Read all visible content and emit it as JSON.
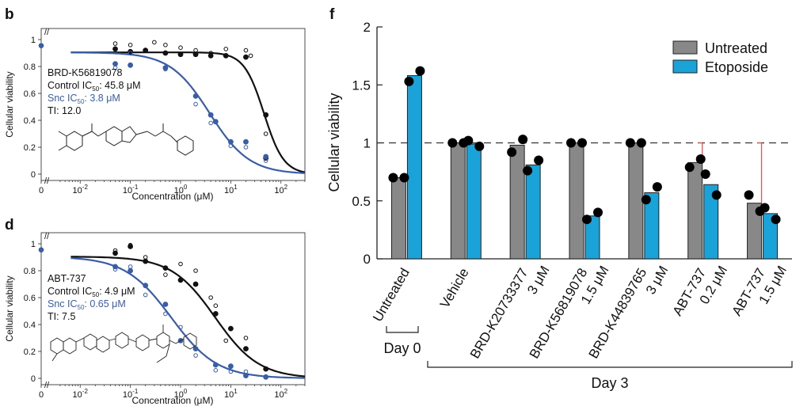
{
  "chart_data": [
    {
      "panel": "b",
      "type": "scatter",
      "xlabel": "Concentration (μM)",
      "ylabel": "Cellular viability",
      "xscale": "log",
      "xlim": [
        0.004,
        300
      ],
      "ylim": [
        -0.05,
        1.05
      ],
      "x_ticks": [
        {
          "v": 0.01,
          "base": "10",
          "exp": "-2"
        },
        {
          "v": 0.1,
          "base": "10",
          "exp": "-1"
        },
        {
          "v": 1,
          "base": "10",
          "exp": "0"
        },
        {
          "v": 10,
          "base": "10",
          "exp": "1"
        },
        {
          "v": 100,
          "base": "10",
          "exp": "2"
        }
      ],
      "x_zero_label": "0",
      "y_ticks": [
        "0",
        "0.2",
        "0.4",
        "0.6",
        "0.8",
        "1"
      ],
      "annotations": {
        "compound": "BRD-K56819078",
        "control_pre": "Control IC",
        "control_sub": "50",
        "control_post": ": 45.8 μM",
        "snc_pre": "Snc IC",
        "snc_sub": "50",
        "snc_post": ": 3.8 μM",
        "ti": "TI: 12.0"
      },
      "series": [
        {
          "name": "Control",
          "color": "#111111",
          "ic50": 45.8,
          "top": 0.905,
          "hill": 2.2,
          "points_filled": [
            [
              0.05,
              0.93
            ],
            [
              0.1,
              0.91
            ],
            [
              0.2,
              0.92
            ],
            [
              0.5,
              0.9
            ],
            [
              1,
              0.89
            ],
            [
              2,
              0.89
            ],
            [
              4,
              0.88
            ],
            [
              8,
              0.88
            ],
            [
              20,
              0.87
            ],
            [
              50,
              0.44
            ],
            [
              50,
              0.12
            ]
          ],
          "points_open": [
            [
              0.05,
              0.97
            ],
            [
              0.1,
              0.96
            ],
            [
              0.2,
              0.92
            ],
            [
              0.3,
              0.98
            ],
            [
              0.5,
              0.96
            ],
            [
              1,
              0.94
            ],
            [
              2,
              0.92
            ],
            [
              4,
              0.9
            ],
            [
              8,
              0.93
            ],
            [
              20,
              0.92
            ],
            [
              25,
              0.88
            ],
            [
              50,
              0.3
            ],
            [
              50,
              0.12
            ]
          ]
        },
        {
          "name": "Snc",
          "color": "#3a5da8",
          "ic50": 3.8,
          "top": 0.905,
          "hill": 1.1,
          "points_filled": [
            [
              0.05,
              0.82
            ],
            [
              0.1,
              0.81
            ],
            [
              0.5,
              0.79
            ],
            [
              2,
              0.58
            ],
            [
              4,
              0.44
            ],
            [
              5,
              0.39
            ],
            [
              10,
              0.24
            ],
            [
              20,
              0.24
            ],
            [
              50,
              0.13
            ]
          ],
          "points_open": [
            [
              0.05,
              0.79
            ],
            [
              0.1,
              0.9
            ],
            [
              0.5,
              0.78
            ],
            [
              2,
              0.52
            ],
            [
              4,
              0.38
            ],
            [
              10,
              0.21
            ],
            [
              20,
              0.2
            ],
            [
              50,
              0.1
            ]
          ]
        }
      ]
    },
    {
      "panel": "d",
      "type": "scatter",
      "xlabel": "Concentration (μM)",
      "ylabel": "Cellular viability",
      "xscale": "log",
      "xlim": [
        0.004,
        300
      ],
      "ylim": [
        -0.05,
        1.05
      ],
      "x_ticks": [
        {
          "v": 0.01,
          "base": "10",
          "exp": "-2"
        },
        {
          "v": 0.1,
          "base": "10",
          "exp": "-1"
        },
        {
          "v": 1,
          "base": "10",
          "exp": "0"
        },
        {
          "v": 10,
          "base": "10",
          "exp": "1"
        },
        {
          "v": 100,
          "base": "10",
          "exp": "2"
        }
      ],
      "x_zero_label": "0",
      "y_ticks": [
        "0",
        "0.2",
        "0.4",
        "0.6",
        "0.8",
        "1"
      ],
      "annotations": {
        "compound": "ABT-737",
        "control_pre": "Control IC",
        "control_sub": "50",
        "control_post": ": 4.9 μM",
        "snc_pre": "Snc IC",
        "snc_sub": "50",
        "snc_post": ": 0.65 μM",
        "ti": "TI: 7.5"
      },
      "series": [
        {
          "name": "Control",
          "color": "#111111",
          "ic50": 4.9,
          "top": 0.905,
          "hill": 1.0,
          "points_filled": [
            [
              0.05,
              0.93
            ],
            [
              0.1,
              0.98
            ],
            [
              0.2,
              0.87
            ],
            [
              0.5,
              0.82
            ],
            [
              1,
              0.73
            ],
            [
              2,
              0.7
            ],
            [
              5,
              0.48
            ],
            [
              10,
              0.37
            ],
            [
              20,
              0.22
            ],
            [
              50,
              0.07
            ]
          ],
          "points_open": [
            [
              0.05,
              0.95
            ],
            [
              0.1,
              0.99
            ],
            [
              0.2,
              0.9
            ],
            [
              0.5,
              0.77
            ],
            [
              1,
              0.85
            ],
            [
              2,
              0.8
            ],
            [
              4,
              0.6
            ],
            [
              5,
              0.54
            ],
            [
              8,
              0.28
            ],
            [
              10,
              0.37
            ],
            [
              20,
              0.3
            ]
          ]
        },
        {
          "name": "Snc",
          "color": "#3a5da8",
          "ic50": 0.65,
          "top": 0.905,
          "hill": 0.95,
          "points_filled": [
            [
              0.05,
              0.83
            ],
            [
              0.1,
              0.8
            ],
            [
              0.2,
              0.69
            ],
            [
              0.5,
              0.55
            ],
            [
              1,
              0.28
            ],
            [
              2,
              0.22
            ],
            [
              5,
              0.1
            ],
            [
              10,
              0.09
            ],
            [
              20,
              0.02
            ],
            [
              50,
              0.01
            ]
          ],
          "points_open": [
            [
              0.05,
              0.81
            ],
            [
              0.1,
              0.83
            ],
            [
              0.2,
              0.62
            ],
            [
              0.5,
              0.48
            ],
            [
              1,
              0.38
            ],
            [
              2,
              0.17
            ],
            [
              5,
              0.06
            ],
            [
              10,
              0.05
            ],
            [
              20,
              0.05
            ]
          ]
        }
      ]
    },
    {
      "panel": "f",
      "type": "bar",
      "ylabel": "Cellular viability",
      "ylim": [
        0,
        2
      ],
      "y_ticks": [
        "0",
        "0.5",
        "1",
        "1.5",
        "2"
      ],
      "reference_line": 1,
      "categories": [
        {
          "line1": "Untreated",
          "line2": ""
        },
        {
          "line1": "Vehicle",
          "line2": ""
        },
        {
          "line1": "BRD-K20733377",
          "line2": "3 μM"
        },
        {
          "line1": "BRD-K56819078",
          "line2": "1.5 μM"
        },
        {
          "line1": "BRD-K44839765",
          "line2": "3 μM"
        },
        {
          "line1": "ABT-737",
          "line2": "0.2 μM"
        },
        {
          "line1": "ABT-737",
          "line2": "1.5 μM"
        }
      ],
      "series": [
        {
          "name": "Untreated",
          "color": "#888888",
          "values": [
            0.7,
            1.0,
            0.98,
            1.0,
            1.0,
            0.83,
            0.48
          ],
          "points": [
            [
              0.7,
              0.7
            ],
            [
              1.0,
              1.0
            ],
            [
              0.92,
              1.03
            ],
            [
              1.0,
              1.0
            ],
            [
              1.0,
              1.0
            ],
            [
              0.79,
              0.86
            ],
            [
              0.55,
              0.41
            ]
          ]
        },
        {
          "name": "Etoposide",
          "color": "#1aa3d9",
          "values": [
            1.58,
            0.99,
            0.81,
            0.37,
            0.57,
            0.64,
            0.39
          ],
          "points": [
            [
              1.53,
              1.62
            ],
            [
              1.02,
              0.97
            ],
            [
              0.76,
              0.85
            ],
            [
              0.34,
              0.4
            ],
            [
              0.51,
              0.62
            ],
            [
              0.73,
              0.55
            ],
            [
              0.44,
              0.34
            ]
          ]
        }
      ],
      "error_bars_red": [
        5,
        6
      ],
      "legend": {
        "position": "top-right",
        "items": [
          "Untreated",
          "Etoposide"
        ]
      },
      "groups": [
        {
          "label": "Day 0",
          "from": 0,
          "to": 0
        },
        {
          "label": "Day 3",
          "from": 1,
          "to": 6
        }
      ]
    }
  ]
}
